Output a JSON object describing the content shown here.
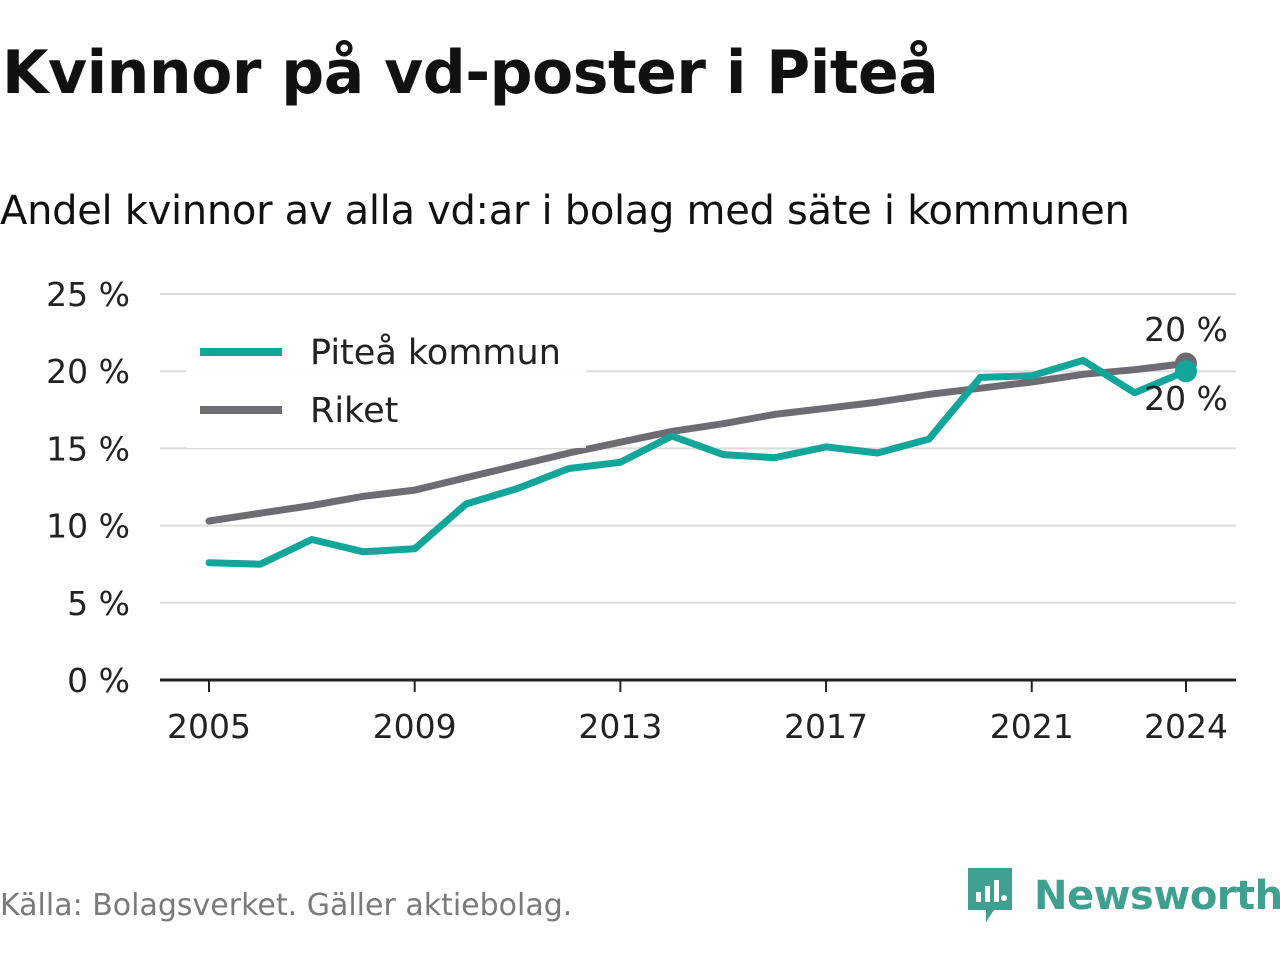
{
  "title": "Kvinnor på vd-poster i Piteå",
  "subtitle": "Andel kvinnor av alla vd:ar i bolag med säte i kommunen",
  "source": "Källa: Bolagsverket. Gäller aktiebolag.",
  "brand": {
    "name": "Newsworthy",
    "icon": "newsworthy-logo-icon",
    "color": "#3fa08f"
  },
  "chart_data": {
    "type": "line",
    "x": [
      2005,
      2006,
      2007,
      2008,
      2009,
      2010,
      2011,
      2012,
      2013,
      2014,
      2015,
      2016,
      2017,
      2018,
      2019,
      2020,
      2021,
      2022,
      2023,
      2024
    ],
    "xticks": [
      2005,
      2009,
      2013,
      2017,
      2021,
      2024
    ],
    "yticks": [
      0,
      5,
      10,
      15,
      20,
      25
    ],
    "ytick_labels": [
      "0 %",
      "5 %",
      "10 %",
      "15 %",
      "20 %",
      "25 %"
    ],
    "ylim": [
      0,
      25
    ],
    "grid": true,
    "legend_position": "top-left",
    "series": [
      {
        "name": "Piteå kommun",
        "color": "#12a599",
        "values": [
          7.6,
          7.5,
          9.1,
          8.3,
          8.5,
          11.4,
          12.4,
          13.7,
          14.1,
          15.8,
          14.6,
          14.4,
          15.1,
          14.7,
          15.6,
          19.6,
          19.7,
          20.7,
          18.6,
          20.0
        ],
        "end_label": "20 %"
      },
      {
        "name": "Riket",
        "color": "#6e6b73",
        "values": [
          10.3,
          10.8,
          11.3,
          11.9,
          12.3,
          13.1,
          13.9,
          14.7,
          15.4,
          16.1,
          16.6,
          17.2,
          17.6,
          18.0,
          18.5,
          18.9,
          19.3,
          19.8,
          20.1,
          20.5
        ],
        "end_label": "20 %"
      }
    ]
  }
}
